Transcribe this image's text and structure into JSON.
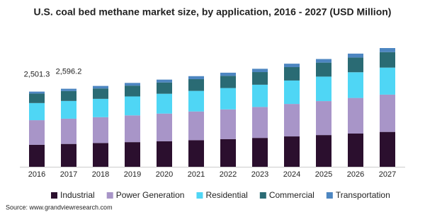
{
  "chart_data": {
    "type": "stacked-bar",
    "title": "U.S. coal bed methane market size, by application, 2016 - 2027 (USD Million)",
    "categories": [
      "2016",
      "2017",
      "2018",
      "2019",
      "2020",
      "2021",
      "2022",
      "2023",
      "2024",
      "2025",
      "2026",
      "2027"
    ],
    "series": [
      {
        "name": "Industrial",
        "color": "#2b0f2e",
        "values": [
          730,
          760,
          790,
          820,
          850,
          885,
          920,
          960,
          1010,
          1055,
          1105,
          1160
        ]
      },
      {
        "name": "Power Generation",
        "color": "#a895c8",
        "values": [
          820,
          840,
          860,
          890,
          920,
          955,
          990,
          1030,
          1080,
          1130,
          1185,
          1240
        ]
      },
      {
        "name": "Residential",
        "color": "#4fd6f5",
        "values": [
          570,
          590,
          610,
          630,
          660,
          685,
          710,
          740,
          780,
          815,
          855,
          900
        ]
      },
      {
        "name": "Commercial",
        "color": "#2a6b74",
        "values": [
          315,
          330,
          345,
          360,
          375,
          390,
          405,
          420,
          445,
          465,
          490,
          515
        ]
      },
      {
        "name": "Transportation",
        "color": "#4d86c1",
        "values": [
          66.3,
          76.2,
          85,
          90,
          95,
          100,
          105,
          110,
          115,
          120,
          130,
          135
        ]
      }
    ],
    "totals": [
      2501.3,
      2596.2
    ],
    "total_labels": [
      "2,501.3",
      "2,596.2"
    ],
    "source": "Source: www.grandviewresearch.com"
  }
}
